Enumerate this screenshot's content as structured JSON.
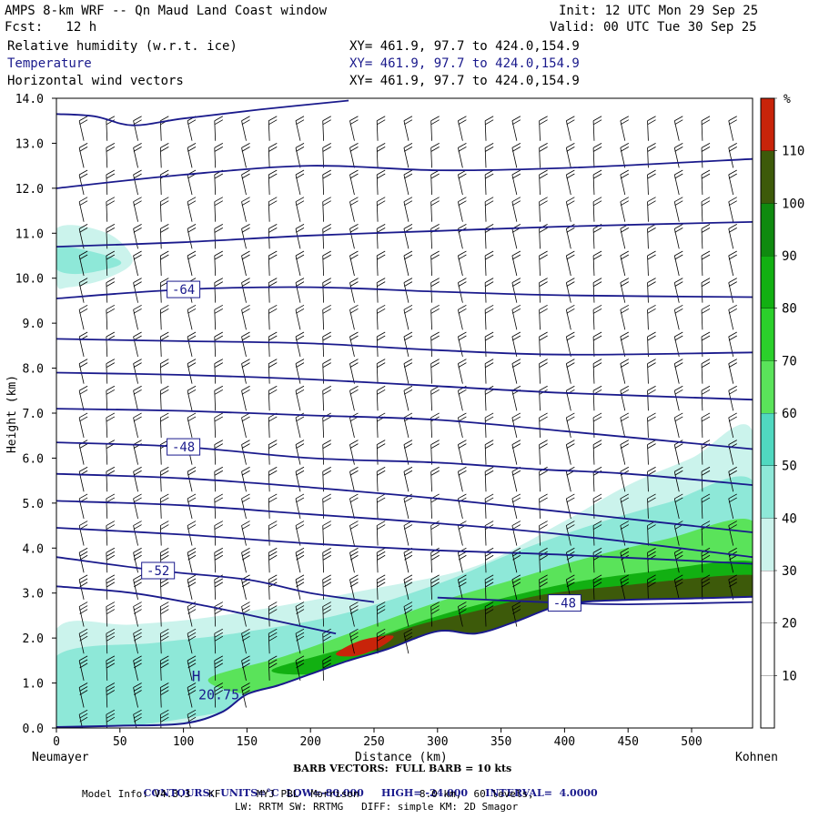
{
  "header": {
    "title": "AMPS 8-km WRF -- Qn Maud Land Coast window",
    "init": "Init: 12 UTC Mon 29 Sep 25",
    "fcst": "Fcst:   12 h",
    "valid": "Valid: 00 UTC Tue 30 Sep 25",
    "fields": [
      {
        "name": "Relative humidity (w.r.t. ice)",
        "xy": "XY= 461.9, 97.7 to 424.0,154.9"
      },
      {
        "name": "Temperature",
        "xy": "XY= 461.9, 97.7 to 424.0,154.9"
      },
      {
        "name": "Horizontal wind vectors",
        "xy": "XY= 461.9, 97.7 to 424.0,154.9"
      }
    ]
  },
  "colors": {
    "contour": "#1a1a8c",
    "rh_scale": [
      "#ffffff",
      "#ffffff",
      "#ffffff",
      "#cbf3ec",
      "#8ee8d8",
      "#50d8c0",
      "#5ae35a",
      "#2bd02b",
      "#12b012",
      "#0f8a0f",
      "#3d5a0a",
      "#c8240a"
    ]
  },
  "chart_data": {
    "type": "cross-section",
    "xlabel": "Distance (km)",
    "ylabel": "Height (km)",
    "x_ticks": [
      0,
      50,
      100,
      150,
      200,
      250,
      300,
      350,
      400,
      450,
      500
    ],
    "y_ticks": [
      "0.0",
      "1.0",
      "2.0",
      "3.0",
      "4.0",
      "5.0",
      "6.0",
      "7.0",
      "8.0",
      "9.0",
      "10.0",
      "11.0",
      "12.0",
      "13.0",
      "14.0"
    ],
    "xlim": [
      0,
      548
    ],
    "ylim": [
      0,
      14
    ],
    "endpoints": {
      "left": "Neumayer",
      "right": "Kohnen"
    },
    "colorbar": {
      "unit": "%",
      "ticks": [
        "10",
        "20",
        "30",
        "40",
        "50",
        "60",
        "70",
        "80",
        "90",
        "100",
        "110"
      ],
      "levels": [
        0,
        10,
        20,
        30,
        40,
        50,
        60,
        70,
        80,
        90,
        100,
        110,
        120
      ]
    },
    "terrain": [
      [
        0,
        0.02
      ],
      [
        50,
        0.05
      ],
      [
        100,
        0.1
      ],
      [
        130,
        0.35
      ],
      [
        150,
        0.75
      ],
      [
        175,
        0.95
      ],
      [
        200,
        1.2
      ],
      [
        230,
        1.5
      ],
      [
        260,
        1.75
      ],
      [
        300,
        2.15
      ],
      [
        330,
        2.1
      ],
      [
        360,
        2.35
      ],
      [
        400,
        2.75
      ],
      [
        450,
        2.85
      ],
      [
        500,
        2.88
      ],
      [
        548,
        2.92
      ]
    ],
    "temperature_contours": [
      {
        "label": "-64",
        "points": [
          [
            0,
            9.55
          ],
          [
            100,
            9.75
          ],
          [
            200,
            9.8
          ],
          [
            300,
            9.7
          ],
          [
            400,
            9.62
          ],
          [
            548,
            9.58
          ]
        ]
      },
      {
        "label": "-48",
        "points": [
          [
            0,
            6.35
          ],
          [
            100,
            6.25
          ],
          [
            200,
            6.0
          ],
          [
            300,
            5.9
          ],
          [
            380,
            5.75
          ],
          [
            450,
            5.65
          ],
          [
            548,
            5.4
          ]
        ]
      },
      {
        "label": "-52",
        "points": [
          [
            0,
            3.8
          ],
          [
            80,
            3.5
          ],
          [
            150,
            3.3
          ],
          [
            200,
            3.0
          ],
          [
            250,
            2.8
          ]
        ]
      },
      {
        "label": "-48",
        "points": [
          [
            300,
            2.9
          ],
          [
            400,
            2.78
          ],
          [
            450,
            2.75
          ],
          [
            548,
            2.8
          ]
        ]
      },
      {
        "label": "",
        "points": [
          [
            0,
            13.65
          ],
          [
            30,
            13.6
          ],
          [
            60,
            13.4
          ],
          [
            100,
            13.55
          ],
          [
            160,
            13.75
          ],
          [
            230,
            13.95
          ]
        ]
      },
      {
        "label": "",
        "points": [
          [
            0,
            12.0
          ],
          [
            100,
            12.3
          ],
          [
            200,
            12.5
          ],
          [
            300,
            12.4
          ],
          [
            400,
            12.45
          ],
          [
            548,
            12.65
          ]
        ]
      },
      {
        "label": "",
        "points": [
          [
            0,
            10.7
          ],
          [
            100,
            10.8
          ],
          [
            200,
            10.95
          ],
          [
            300,
            11.05
          ],
          [
            400,
            11.15
          ],
          [
            548,
            11.25
          ]
        ]
      },
      {
        "label": "",
        "points": [
          [
            0,
            8.65
          ],
          [
            100,
            8.6
          ],
          [
            200,
            8.55
          ],
          [
            300,
            8.4
          ],
          [
            400,
            8.3
          ],
          [
            548,
            8.35
          ]
        ]
      },
      {
        "label": "",
        "points": [
          [
            0,
            7.9
          ],
          [
            100,
            7.85
          ],
          [
            200,
            7.75
          ],
          [
            300,
            7.6
          ],
          [
            400,
            7.45
          ],
          [
            548,
            7.3
          ]
        ]
      },
      {
        "label": "",
        "points": [
          [
            0,
            7.1
          ],
          [
            100,
            7.05
          ],
          [
            200,
            6.95
          ],
          [
            300,
            6.85
          ],
          [
            400,
            6.6
          ],
          [
            548,
            6.2
          ]
        ]
      },
      {
        "label": "",
        "points": [
          [
            0,
            5.65
          ],
          [
            100,
            5.55
          ],
          [
            200,
            5.35
          ],
          [
            300,
            5.1
          ],
          [
            400,
            4.8
          ],
          [
            548,
            4.35
          ]
        ]
      },
      {
        "label": "",
        "points": [
          [
            0,
            5.05
          ],
          [
            100,
            4.95
          ],
          [
            200,
            4.75
          ],
          [
            300,
            4.55
          ],
          [
            400,
            4.3
          ],
          [
            548,
            3.8
          ]
        ]
      },
      {
        "label": "",
        "points": [
          [
            0,
            4.45
          ],
          [
            100,
            4.3
          ],
          [
            200,
            4.1
          ],
          [
            300,
            3.95
          ],
          [
            400,
            3.85
          ],
          [
            548,
            3.65
          ]
        ]
      },
      {
        "label": "",
        "points": [
          [
            0,
            3.15
          ],
          [
            60,
            3.0
          ],
          [
            120,
            2.7
          ],
          [
            170,
            2.4
          ],
          [
            220,
            2.1
          ]
        ]
      }
    ],
    "high": {
      "symbol": "H",
      "value": "20.75",
      "x": 110,
      "y": 0.8
    },
    "rh_regions": [
      {
        "level": 30,
        "points": [
          [
            0,
            11.1
          ],
          [
            40,
            11.0
          ],
          [
            60,
            10.4
          ],
          [
            40,
            10.0
          ],
          [
            10,
            9.8
          ],
          [
            0,
            9.9
          ]
        ]
      },
      {
        "level": 40,
        "points": [
          [
            0,
            10.7
          ],
          [
            40,
            10.5
          ],
          [
            50,
            10.3
          ],
          [
            20,
            10.1
          ],
          [
            0,
            10.2
          ]
        ]
      },
      {
        "level": 30,
        "points": [
          [
            0,
            2.2
          ],
          [
            60,
            2.3
          ],
          [
            130,
            2.5
          ],
          [
            250,
            3.1
          ],
          [
            330,
            3.6
          ],
          [
            400,
            4.6
          ],
          [
            450,
            5.4
          ],
          [
            500,
            6.0
          ],
          [
            548,
            6.6
          ],
          [
            548,
            2.92
          ],
          [
            500,
            2.88
          ],
          [
            450,
            2.85
          ],
          [
            400,
            2.75
          ],
          [
            360,
            2.35
          ],
          [
            330,
            2.1
          ],
          [
            300,
            2.15
          ],
          [
            260,
            1.75
          ],
          [
            230,
            1.5
          ],
          [
            200,
            1.2
          ],
          [
            175,
            0.95
          ],
          [
            150,
            0.75
          ],
          [
            130,
            0.35
          ],
          [
            100,
            0.1
          ],
          [
            50,
            0.05
          ],
          [
            0,
            0.02
          ]
        ]
      },
      {
        "level": 40,
        "points": [
          [
            0,
            1.6
          ],
          [
            80,
            1.9
          ],
          [
            140,
            2.1
          ],
          [
            220,
            2.5
          ],
          [
            300,
            3.2
          ],
          [
            360,
            3.9
          ],
          [
            420,
            4.5
          ],
          [
            480,
            5.0
          ],
          [
            548,
            5.5
          ],
          [
            548,
            2.92
          ],
          [
            400,
            2.75
          ],
          [
            360,
            2.35
          ],
          [
            330,
            2.1
          ],
          [
            300,
            2.15
          ],
          [
            260,
            1.75
          ],
          [
            230,
            1.5
          ],
          [
            200,
            1.2
          ],
          [
            175,
            0.95
          ],
          [
            150,
            0.75
          ],
          [
            130,
            0.35
          ],
          [
            0,
            0.02
          ]
        ]
      },
      {
        "level": 60,
        "points": [
          [
            120,
            1.1
          ],
          [
            180,
            1.6
          ],
          [
            240,
            2.2
          ],
          [
            300,
            2.8
          ],
          [
            360,
            3.3
          ],
          [
            420,
            3.8
          ],
          [
            480,
            4.2
          ],
          [
            548,
            4.6
          ],
          [
            548,
            2.92
          ],
          [
            400,
            2.75
          ],
          [
            360,
            2.35
          ],
          [
            330,
            2.1
          ],
          [
            300,
            2.15
          ],
          [
            260,
            1.75
          ],
          [
            230,
            1.5
          ],
          [
            200,
            1.2
          ],
          [
            175,
            0.95
          ],
          [
            150,
            0.75
          ]
        ]
      },
      {
        "level": 80,
        "points": [
          [
            170,
            1.3
          ],
          [
            230,
            1.8
          ],
          [
            290,
            2.4
          ],
          [
            340,
            2.8
          ],
          [
            400,
            3.2
          ],
          [
            460,
            3.45
          ],
          [
            548,
            3.7
          ],
          [
            548,
            2.92
          ],
          [
            400,
            2.75
          ],
          [
            360,
            2.35
          ],
          [
            330,
            2.1
          ],
          [
            300,
            2.15
          ],
          [
            260,
            1.75
          ],
          [
            230,
            1.5
          ],
          [
            200,
            1.2
          ]
        ]
      },
      {
        "level": 100,
        "points": [
          [
            230,
            1.75
          ],
          [
            280,
            2.25
          ],
          [
            330,
            2.6
          ],
          [
            380,
            2.95
          ],
          [
            440,
            3.15
          ],
          [
            548,
            3.4
          ],
          [
            548,
            2.92
          ],
          [
            450,
            2.85
          ],
          [
            400,
            2.75
          ],
          [
            360,
            2.35
          ],
          [
            330,
            2.1
          ],
          [
            300,
            2.15
          ],
          [
            260,
            1.75
          ]
        ]
      },
      {
        "level": 110,
        "points": [
          [
            220,
            1.65
          ],
          [
            240,
            1.95
          ],
          [
            265,
            2.05
          ],
          [
            255,
            1.8
          ],
          [
            235,
            1.6
          ]
        ]
      }
    ]
  },
  "footer": {
    "distance_label": "Distance (km)",
    "barb_note": "BARB VECTORS:  FULL BARB = 10 kts",
    "contours_prefix": "CONTOURS:  UNITS=°C  LOW=",
    "low": "-80.000",
    "high_label": "HIGH=",
    "high": "-24.000",
    "interval_label": "INTERVAL=",
    "interval": "4.0000",
    "model_info": "Model Info: V4.3.3   KF      MYJ PBL  Morrison          8.0 km,  60 levels,",
    "model_info2": "LW: RRTM SW: RRTMG   DIFF: simple KM: 2D Smagor"
  }
}
